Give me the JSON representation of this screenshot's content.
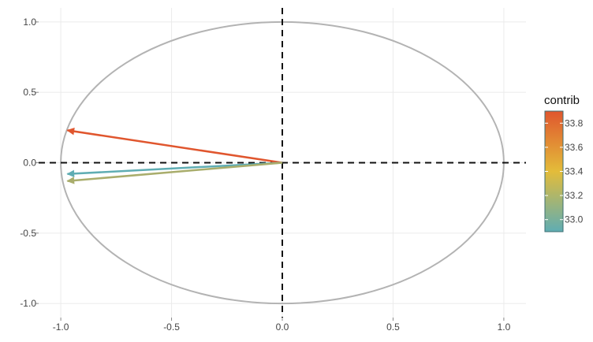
{
  "chart_data": {
    "type": "scatter",
    "subtype": "pca-variable-correlation-circle",
    "title": "",
    "xlabel": "",
    "ylabel": "",
    "xlim": [
      -1.1,
      1.1
    ],
    "ylim": [
      -1.1,
      1.1
    ],
    "x_ticks": [
      -1.0,
      -0.5,
      0.0,
      0.5,
      1.0
    ],
    "x_tick_labels": [
      "-1.0",
      "-0.5",
      "0.0",
      "0.5",
      "1.0"
    ],
    "y_ticks": [
      1.0,
      0.5,
      0.0,
      -0.5,
      -1.0
    ],
    "y_tick_labels": [
      "1.0",
      "0.5",
      "0.0",
      "-0.5",
      "-1.0"
    ],
    "grid": true,
    "reference_lines": {
      "x": 0,
      "y": 0,
      "style": "dashed"
    },
    "unit_circle": {
      "radius": 1,
      "color": "#b3b3b3"
    },
    "vectors": [
      {
        "x": -0.97,
        "y": 0.23,
        "contrib": 33.9,
        "color": "#e0562e"
      },
      {
        "x": -0.97,
        "y": -0.08,
        "contrib": 33.0,
        "color": "#5fadb3"
      },
      {
        "x": -0.97,
        "y": -0.13,
        "contrib": 33.15,
        "color": "#a9ad6c"
      }
    ],
    "legend": {
      "title": "contrib",
      "placement": "right",
      "range": [
        32.9,
        33.9
      ],
      "ticks": [
        33.0,
        33.2,
        33.4,
        33.6,
        33.8
      ],
      "tick_labels": [
        "33.0",
        "33.2",
        "33.4",
        "33.6",
        "33.8"
      ],
      "gradient": [
        "#5fadb3",
        "#e3bc3a",
        "#e0562e"
      ]
    }
  }
}
